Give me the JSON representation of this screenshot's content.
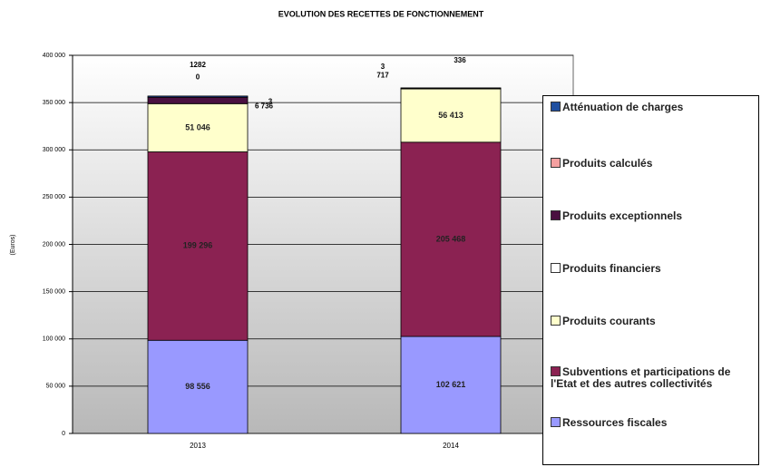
{
  "chart_data": {
    "type": "stacked-bar",
    "title": "EVOLUTION DES RECETTES DE FONCTIONNEMENT",
    "y_label": "(Euros)",
    "categories": [
      "2013",
      "2014"
    ],
    "series": [
      {
        "name": "Ressources fiscales",
        "color": "#9999ff",
        "values": [
          98556,
          102621
        ],
        "value_labels": [
          "98 556",
          "102 621"
        ]
      },
      {
        "name": "Subventions et participations de l'Etat et des autres collectivités",
        "color": "#8b2252",
        "values": [
          199296,
          205468
        ],
        "value_labels": [
          "199 296",
          "205 468"
        ]
      },
      {
        "name": "Produits courants",
        "color": "#ffffcc",
        "values": [
          51046,
          56413
        ],
        "value_labels": [
          "51 046",
          "56 413"
        ]
      },
      {
        "name": "Produits financiers",
        "color": "#ffffff",
        "values": [
          3,
          3
        ]
      },
      {
        "name": "Produits exceptionnels",
        "color": "#4a1040",
        "values": [
          6736,
          717
        ],
        "value_labels": [
          "6 736",
          null
        ]
      },
      {
        "name": "Produits calculés",
        "color": "#f4a0a0",
        "values": [
          0,
          null
        ]
      },
      {
        "name": "Atténuation de charges",
        "color": "#1f4fa0",
        "values": [
          1282,
          336
        ]
      }
    ],
    "ylim": [
      0,
      400000
    ],
    "yticks": [
      0,
      {
        "value": 50000,
        "label": "50 000"
      },
      {
        "value": 100000,
        "label": "100 000"
      },
      {
        "value": 150000,
        "label": "150 000"
      },
      {
        "value": 200000,
        "label": "200 000"
      },
      {
        "value": 250000,
        "label": "250 000"
      },
      {
        "value": 300000,
        "label": "300 000"
      },
      {
        "value": 350000,
        "label": "350 000"
      },
      {
        "value": 400000,
        "label": "400 000"
      }
    ],
    "grid": true,
    "legend": "right"
  }
}
